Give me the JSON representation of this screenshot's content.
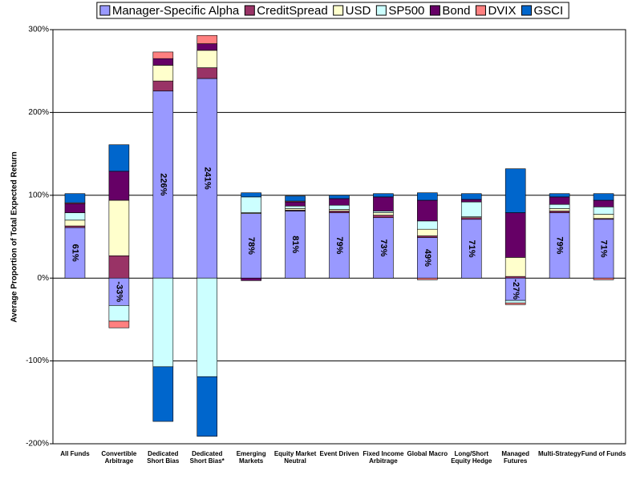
{
  "chart_data": {
    "type": "bar",
    "stacked": true,
    "y_label": "Average Proportion of Total Expected Return",
    "categories": [
      "All Funds",
      "Convertible Arbitrage",
      "Dedicated Short Bias",
      "Dedicated Short Bias*",
      "Emerging Markets",
      "Equity Market Neutral",
      "Event Driven",
      "Fixed Income Arbitrage",
      "Global Macro",
      "Long/Short Equity Hedge",
      "Managed Futures",
      "Multi-Strategy",
      "Fund of Funds"
    ],
    "series": [
      {
        "name": "Manager-Specific Alpha",
        "color": "#9999ff",
        "values": [
          61,
          -33,
          226,
          241,
          78,
          81,
          79,
          73,
          49,
          71,
          -27,
          79,
          71
        ],
        "value_labels": [
          "61%",
          "-33%",
          "226%",
          "241%",
          "78%",
          "81%",
          "79%",
          "73%",
          "49%",
          "71%",
          "-27%",
          "79%",
          "71%"
        ]
      },
      {
        "name": "CreditSpread",
        "color": "#993366",
        "values": [
          2,
          27,
          12,
          13,
          0,
          1,
          2,
          3,
          2,
          2,
          2,
          2,
          1
        ]
      },
      {
        "name": "USD",
        "color": "#ffffcc",
        "values": [
          7,
          67,
          19,
          21,
          1,
          2,
          2,
          3,
          8,
          1,
          23,
          3,
          5
        ]
      },
      {
        "name": "SP500",
        "color": "#ccffff",
        "values": [
          9,
          -19,
          -107,
          -119,
          19,
          3,
          5,
          2,
          10,
          18,
          -3,
          5,
          9
        ]
      },
      {
        "name": "Bond",
        "color": "#660066",
        "values": [
          11,
          35,
          8,
          8,
          -3,
          5,
          8,
          17,
          25,
          3,
          54,
          9,
          8
        ]
      },
      {
        "name": "DVIX",
        "color": "#ff8080",
        "values": [
          1,
          -8,
          8,
          10,
          0,
          1,
          0,
          0,
          -2,
          0,
          -2,
          0,
          -2
        ]
      },
      {
        "name": "GSCI",
        "color": "#0066cc",
        "values": [
          11,
          32,
          -66,
          -72,
          5,
          6,
          4,
          4,
          9,
          7,
          53,
          4,
          8
        ]
      }
    ],
    "ylim": [
      -200,
      300
    ],
    "yticks": [
      {
        "value": -200,
        "label": "-200%"
      },
      {
        "value": -100,
        "label": "-100%"
      },
      {
        "value": 0,
        "label": "0%"
      },
      {
        "value": 100,
        "label": "100%"
      },
      {
        "value": 200,
        "label": "200%"
      },
      {
        "value": 300,
        "label": "300%"
      }
    ],
    "grid": true,
    "legend": "top"
  }
}
